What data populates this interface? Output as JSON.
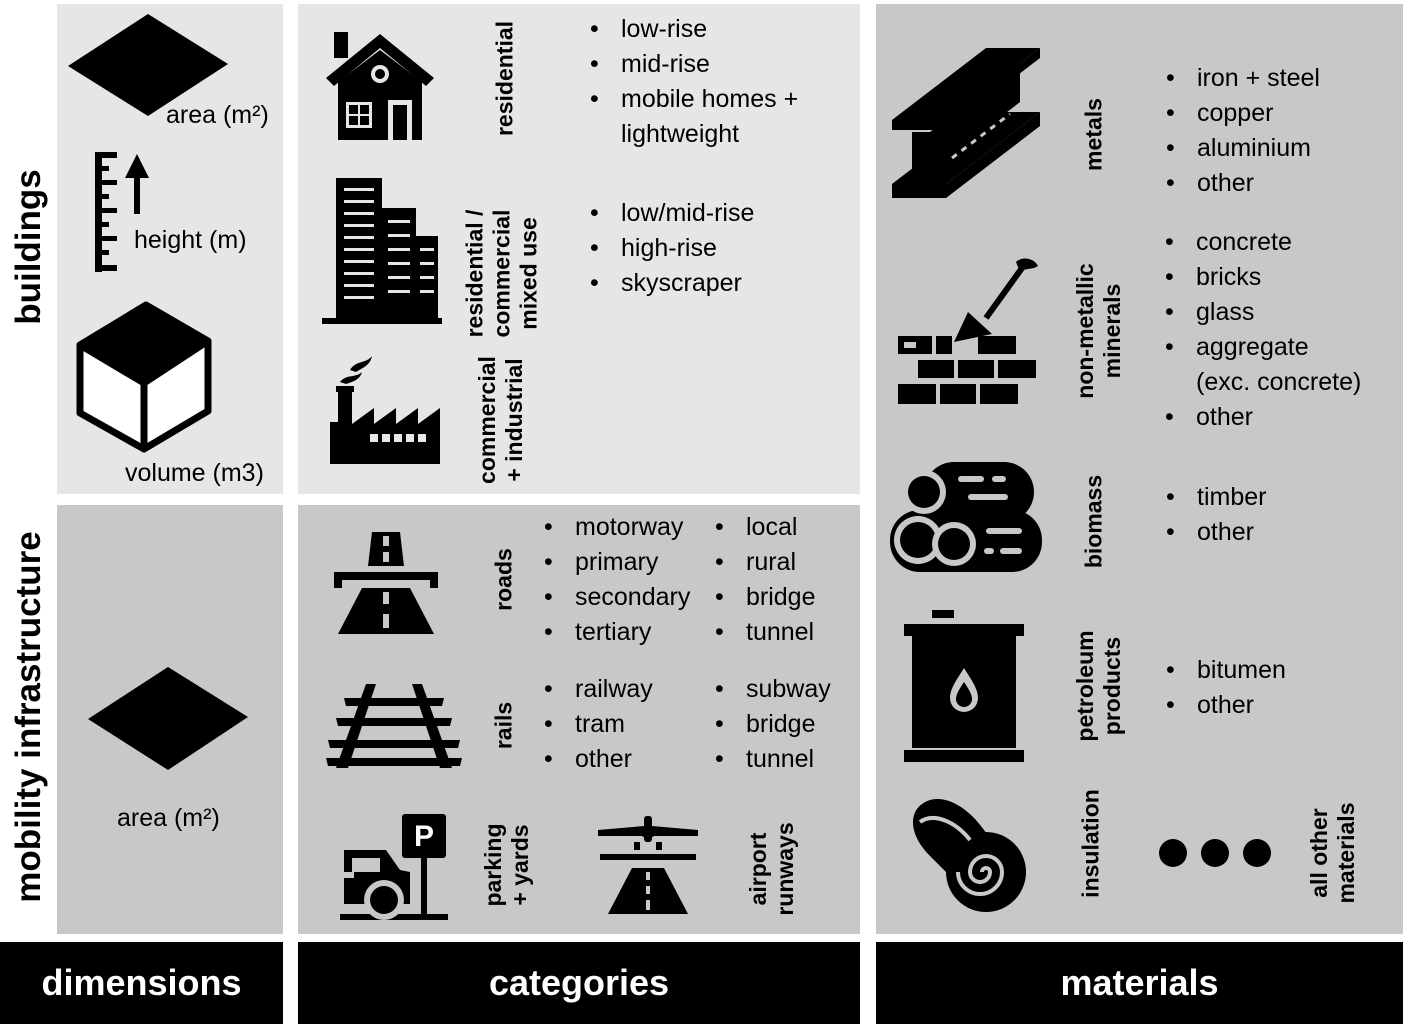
{
  "footer": {
    "dimensions": "dimensions",
    "categories": "categories",
    "materials": "materials"
  },
  "rows": {
    "buildings": "buildings",
    "mobility": "mobility infrastructure"
  },
  "dimensions": {
    "area": "area (m²)",
    "height": "height (m)",
    "volume": "volume (m3)",
    "mobility_area": "area (m²)"
  },
  "categories": {
    "residential": {
      "label": "residential",
      "items": [
        "low-rise",
        "mid-rise",
        "mobile homes +",
        "lightweight"
      ]
    },
    "mixed_use": {
      "label_lines": [
        "residential /",
        "commercial",
        "mixed use"
      ],
      "items": [
        "low/mid-rise",
        "high-rise",
        "skyscraper"
      ]
    },
    "commercial": {
      "label_lines": [
        "commercial",
        "+ industrial"
      ]
    },
    "roads": {
      "label": "roads",
      "items_col1": [
        "motorway",
        "primary",
        "secondary",
        "tertiary"
      ],
      "items_col2": [
        "local",
        "rural",
        "bridge",
        "tunnel"
      ]
    },
    "rails": {
      "label": "rails",
      "items_col1": [
        "railway",
        "tram",
        "other"
      ],
      "items_col2": [
        "subway",
        "bridge",
        "tunnel"
      ]
    },
    "parking": {
      "label_lines": [
        "parking",
        "+ yards"
      ],
      "sign": "P"
    },
    "airport": {
      "label_lines": [
        "airport",
        "runways"
      ]
    }
  },
  "materials": {
    "metals": {
      "label": "metals",
      "items": [
        "iron + steel",
        "copper",
        "aluminium",
        "other"
      ]
    },
    "non_metallic": {
      "label_lines": [
        "non-metallic",
        "minerals"
      ],
      "items": [
        "concrete",
        "bricks",
        "glass",
        "aggregate",
        "(exc. concrete)",
        "other"
      ]
    },
    "biomass": {
      "label": "biomass",
      "items": [
        "timber",
        "other"
      ]
    },
    "petroleum": {
      "label_lines": [
        "petroleum",
        "products"
      ],
      "items": [
        "bitumen",
        "other"
      ]
    },
    "insulation": {
      "label": "insulation"
    },
    "other": {
      "label_lines": [
        "all other",
        "materials"
      ]
    }
  },
  "colors": {
    "light_panel": "#e6e6e6",
    "mid_panel": "#c8c8c8",
    "footer": "#000000"
  }
}
